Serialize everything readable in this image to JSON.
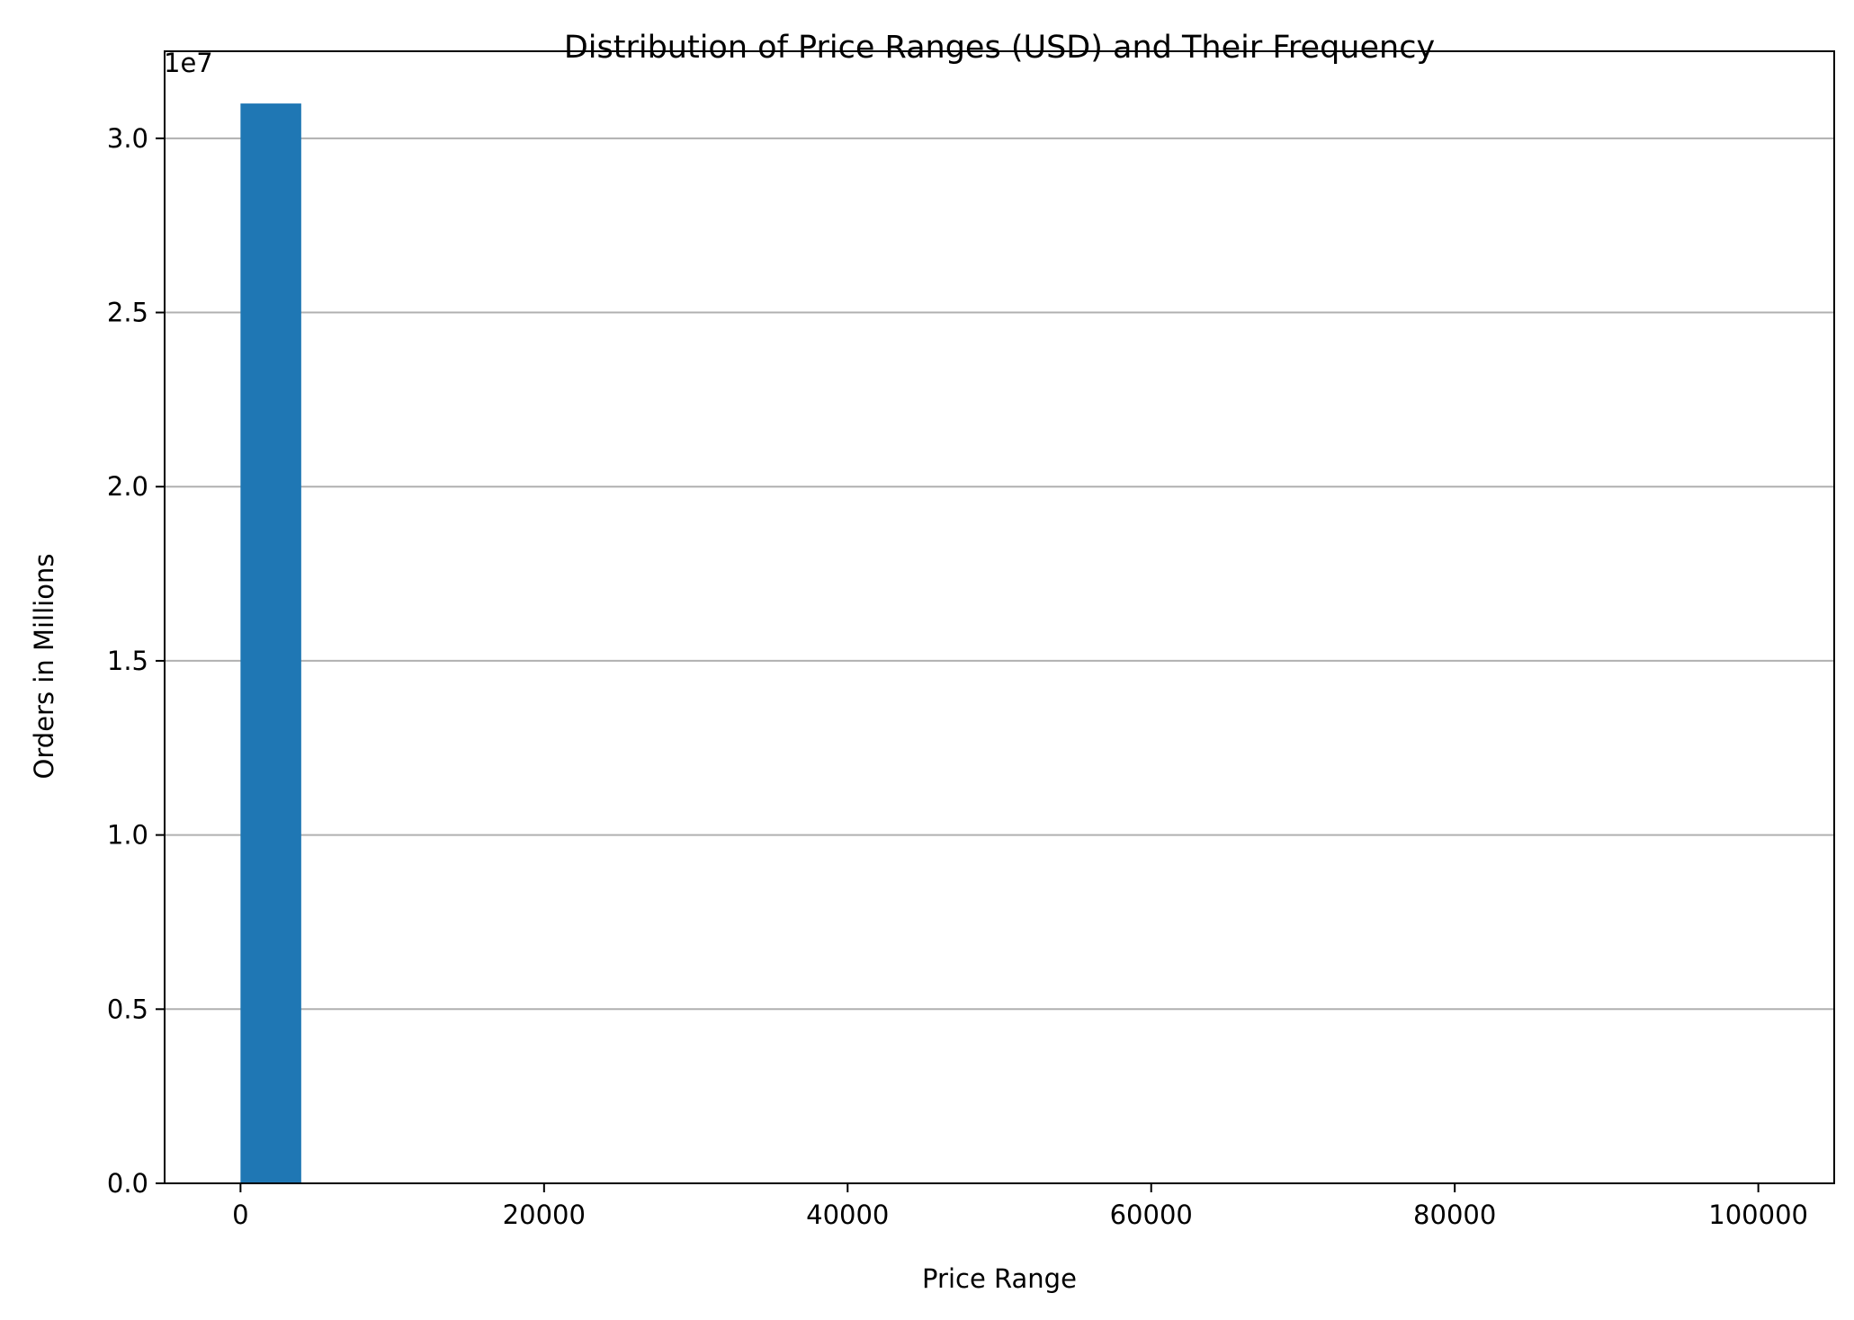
{
  "chart_data": {
    "type": "bar",
    "title": "Distribution of Price Ranges (USD) and Their Frequency",
    "xlabel": "Price Range",
    "ylabel": "Orders in Millions",
    "y_offset_label": "1e7",
    "xlim": [
      -5000,
      105000
    ],
    "ylim": [
      0,
      3.25
    ],
    "x_ticks": [
      0,
      20000,
      40000,
      60000,
      80000,
      100000
    ],
    "x_tick_labels": [
      "0",
      "20000",
      "40000",
      "60000",
      "80000",
      "100000"
    ],
    "y_ticks": [
      0,
      0.5,
      1.0,
      1.5,
      2.0,
      2.5,
      3.0
    ],
    "y_tick_labels": [
      "0.0",
      "0.5",
      "1.0",
      "1.5",
      "2.0",
      "2.5",
      "3.0"
    ],
    "grid": {
      "y": true,
      "x": false
    },
    "bar_color": "#1f77b4",
    "grid_color": "#b0b0b0",
    "bins": [
      {
        "x_start": 0,
        "x_end": 4000,
        "value": 3.1
      }
    ]
  }
}
